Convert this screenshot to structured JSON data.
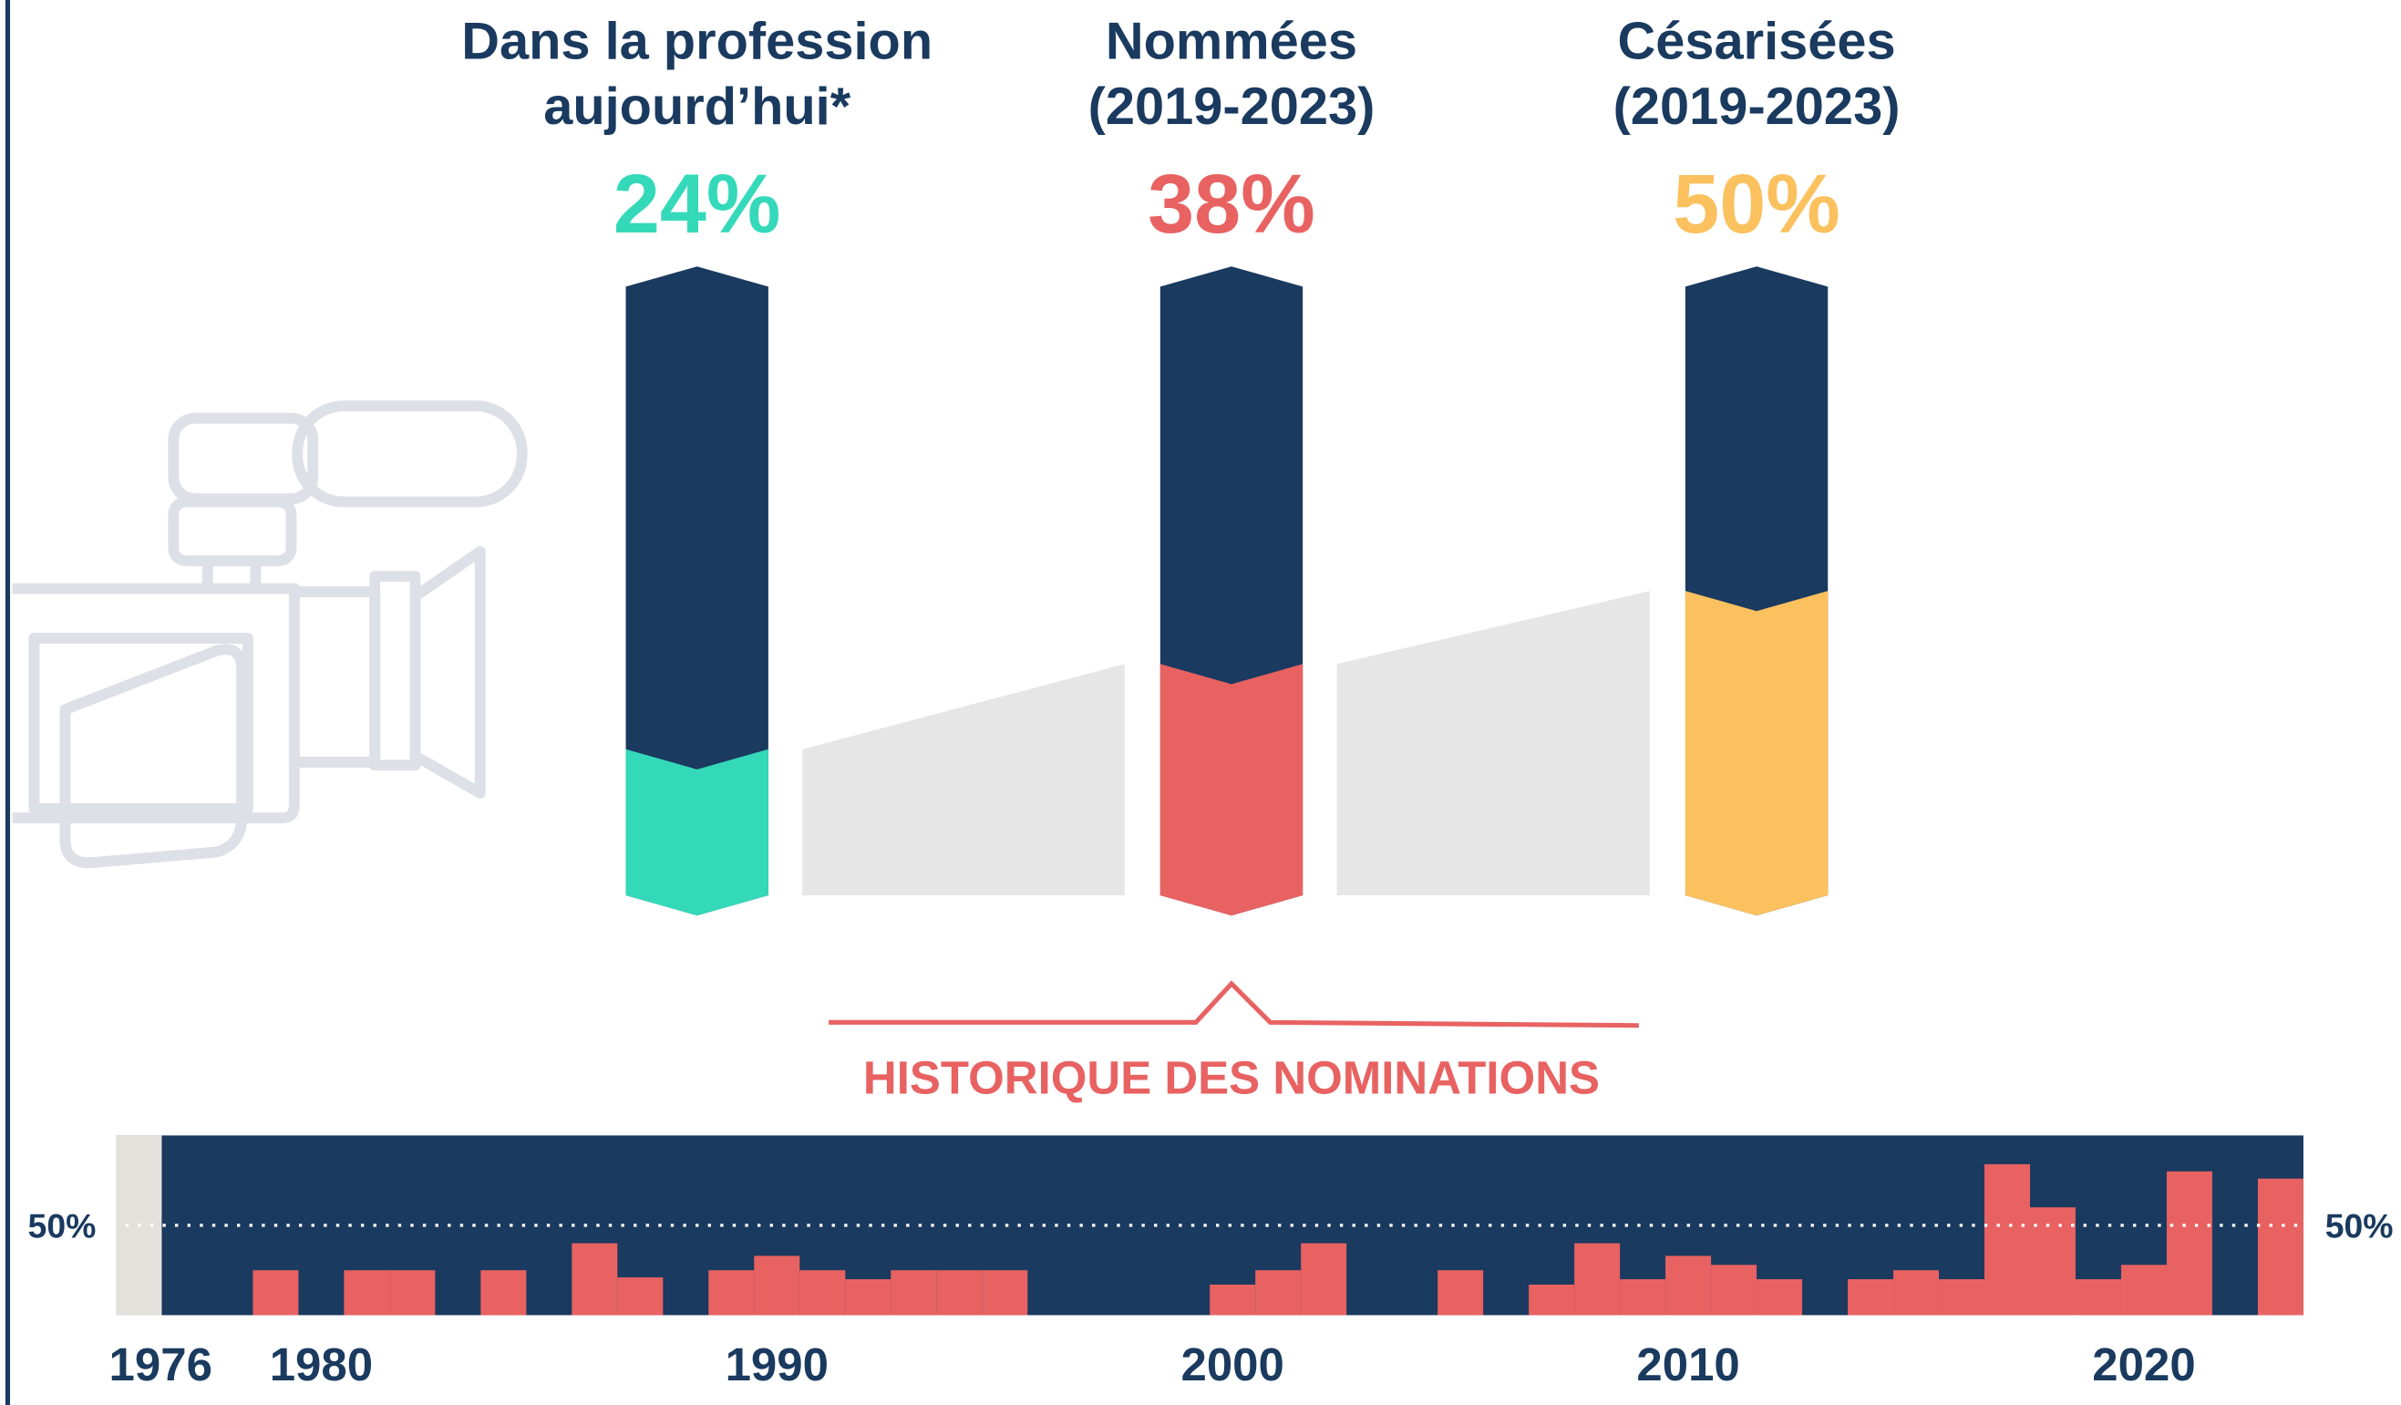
{
  "chart_data": [
    {
      "type": "hexbar",
      "categories": [
        "Dans la profession\naujourd’hui*",
        "Nommées\n(2019-2023)",
        "Césarisées\n(2019-2023)"
      ],
      "values": [
        24,
        38,
        50
      ],
      "value_labels": [
        "24%",
        "38%",
        "50%"
      ],
      "colors": [
        "#34d9b9",
        "#e86262",
        "#fbc15e"
      ],
      "ylim": [
        0,
        100
      ]
    },
    {
      "type": "bar",
      "title": "HISTORIQUE DES NOMINATIONS",
      "x": [
        1976,
        1977,
        1978,
        1979,
        1980,
        1981,
        1982,
        1983,
        1984,
        1985,
        1986,
        1987,
        1988,
        1989,
        1990,
        1991,
        1992,
        1993,
        1994,
        1995,
        1996,
        1997,
        1998,
        1999,
        2000,
        2001,
        2002,
        2003,
        2004,
        2005,
        2006,
        2007,
        2008,
        2009,
        2010,
        2011,
        2012,
        2013,
        2014,
        2015,
        2016,
        2017,
        2018,
        2019,
        2020,
        2021,
        2022,
        2023
      ],
      "values": [
        null,
        0,
        0,
        25,
        0,
        25,
        25,
        0,
        25,
        0,
        40,
        21,
        0,
        25,
        33,
        25,
        20,
        25,
        25,
        25,
        0,
        0,
        0,
        0,
        17,
        25,
        40,
        0,
        0,
        25,
        0,
        17,
        40,
        20,
        33,
        28,
        20,
        0,
        20,
        25,
        20,
        84,
        60,
        20,
        28,
        80,
        0,
        76
      ],
      "color": "#e86262",
      "xlim": [
        1976,
        2024
      ],
      "xticks": [
        1976,
        1980,
        1990,
        2000,
        2010,
        2020
      ],
      "ylim": [
        0,
        100
      ],
      "yticks": [
        {
          "value": 50,
          "label": "50%"
        }
      ]
    }
  ]
}
